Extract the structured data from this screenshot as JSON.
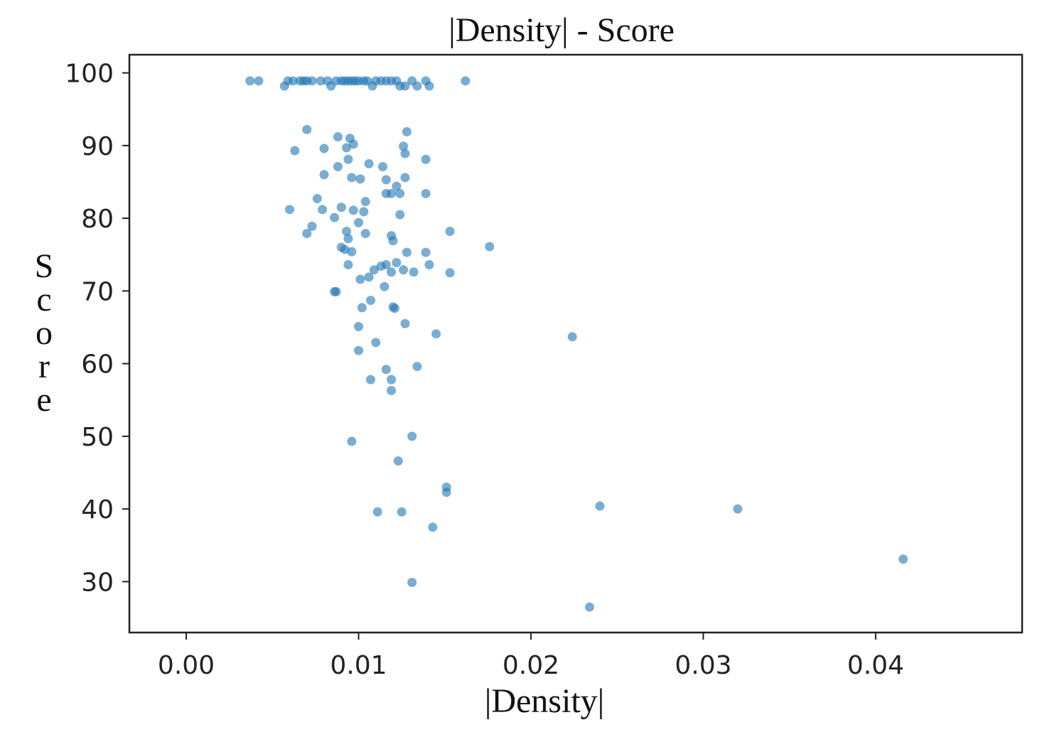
{
  "chart_data": {
    "type": "scatter",
    "title": "|Density| - Score",
    "xlabel": "|Density|",
    "ylabel": "Score",
    "xlim": [
      -0.0033,
      0.0485
    ],
    "ylim": [
      23.0,
      102.5
    ],
    "xticks": [
      0.0,
      0.01,
      0.02,
      0.03,
      0.04
    ],
    "xtick_labels": [
      "0.00",
      "0.01",
      "0.02",
      "0.03",
      "0.04"
    ],
    "yticks": [
      30,
      40,
      50,
      60,
      70,
      80,
      90,
      100
    ],
    "ytick_labels": [
      "30",
      "40",
      "50",
      "60",
      "70",
      "80",
      "90",
      "100"
    ],
    "grid": false,
    "color": "#1f77b4",
    "series": [
      {
        "points": [
          [
            0.0037,
            98.9
          ],
          [
            0.0042,
            98.9
          ],
          [
            0.0057,
            98.2
          ],
          [
            0.0059,
            98.9
          ],
          [
            0.0062,
            98.9
          ],
          [
            0.0066,
            98.9
          ],
          [
            0.0068,
            98.9
          ],
          [
            0.007,
            98.9
          ],
          [
            0.0073,
            98.9
          ],
          [
            0.0078,
            98.9
          ],
          [
            0.0082,
            98.9
          ],
          [
            0.0084,
            98.2
          ],
          [
            0.0087,
            98.9
          ],
          [
            0.009,
            98.9
          ],
          [
            0.0092,
            98.9
          ],
          [
            0.0094,
            98.9
          ],
          [
            0.0096,
            98.9
          ],
          [
            0.0098,
            98.9
          ],
          [
            0.01,
            98.9
          ],
          [
            0.0103,
            98.9
          ],
          [
            0.0105,
            98.9
          ],
          [
            0.0108,
            98.2
          ],
          [
            0.011,
            98.9
          ],
          [
            0.0113,
            98.9
          ],
          [
            0.0116,
            98.9
          ],
          [
            0.0119,
            98.9
          ],
          [
            0.0122,
            98.9
          ],
          [
            0.0124,
            98.2
          ],
          [
            0.0127,
            98.2
          ],
          [
            0.0131,
            98.9
          ],
          [
            0.0134,
            98.2
          ],
          [
            0.0139,
            98.9
          ],
          [
            0.0141,
            98.2
          ],
          [
            0.0162,
            98.9
          ],
          [
            0.007,
            92.2
          ],
          [
            0.0088,
            91.2
          ],
          [
            0.0095,
            91.0
          ],
          [
            0.0128,
            91.9
          ],
          [
            0.0063,
            89.3
          ],
          [
            0.008,
            89.6
          ],
          [
            0.0093,
            89.7
          ],
          [
            0.0097,
            90.2
          ],
          [
            0.0126,
            89.9
          ],
          [
            0.0127,
            88.9
          ],
          [
            0.0139,
            88.1
          ],
          [
            0.0094,
            88.1
          ],
          [
            0.0088,
            87.1
          ],
          [
            0.0106,
            87.5
          ],
          [
            0.0114,
            87.1
          ],
          [
            0.008,
            86.0
          ],
          [
            0.0096,
            85.6
          ],
          [
            0.0101,
            85.4
          ],
          [
            0.0116,
            85.3
          ],
          [
            0.0127,
            85.6
          ],
          [
            0.0122,
            84.4
          ],
          [
            0.0116,
            83.4
          ],
          [
            0.0119,
            83.4
          ],
          [
            0.0124,
            83.4
          ],
          [
            0.0139,
            83.4
          ],
          [
            0.0076,
            82.7
          ],
          [
            0.009,
            81.5
          ],
          [
            0.0104,
            82.3
          ],
          [
            0.0079,
            81.2
          ],
          [
            0.006,
            81.2
          ],
          [
            0.0097,
            81.1
          ],
          [
            0.0103,
            80.9
          ],
          [
            0.0086,
            80.1
          ],
          [
            0.01,
            79.4
          ],
          [
            0.0124,
            80.5
          ],
          [
            0.0073,
            78.9
          ],
          [
            0.007,
            77.9
          ],
          [
            0.0093,
            78.2
          ],
          [
            0.0104,
            77.9
          ],
          [
            0.0094,
            77.2
          ],
          [
            0.0119,
            77.6
          ],
          [
            0.012,
            76.9
          ],
          [
            0.0153,
            78.2
          ],
          [
            0.009,
            76.0
          ],
          [
            0.0092,
            75.7
          ],
          [
            0.0096,
            75.4
          ],
          [
            0.0128,
            75.3
          ],
          [
            0.0139,
            75.3
          ],
          [
            0.0176,
            76.1
          ],
          [
            0.0094,
            73.6
          ],
          [
            0.0113,
            73.4
          ],
          [
            0.0116,
            73.6
          ],
          [
            0.0122,
            73.9
          ],
          [
            0.0141,
            73.6
          ],
          [
            0.0109,
            72.9
          ],
          [
            0.0119,
            72.6
          ],
          [
            0.0126,
            72.9
          ],
          [
            0.0132,
            72.6
          ],
          [
            0.0153,
            72.5
          ],
          [
            0.0101,
            71.6
          ],
          [
            0.0106,
            71.9
          ],
          [
            0.0115,
            70.6
          ],
          [
            0.0086,
            69.9
          ],
          [
            0.0087,
            69.9
          ],
          [
            0.0107,
            68.7
          ],
          [
            0.0102,
            67.7
          ],
          [
            0.012,
            67.8
          ],
          [
            0.0121,
            67.6
          ],
          [
            0.0127,
            65.5
          ],
          [
            0.01,
            65.1
          ],
          [
            0.0145,
            64.1
          ],
          [
            0.0224,
            63.7
          ],
          [
            0.011,
            62.9
          ],
          [
            0.01,
            61.8
          ],
          [
            0.0116,
            59.2
          ],
          [
            0.0134,
            59.6
          ],
          [
            0.0107,
            57.8
          ],
          [
            0.0119,
            57.8
          ],
          [
            0.0119,
            56.3
          ],
          [
            0.0096,
            49.3
          ],
          [
            0.0131,
            50.0
          ],
          [
            0.0123,
            46.6
          ],
          [
            0.0151,
            43.0
          ],
          [
            0.0151,
            42.3
          ],
          [
            0.024,
            40.4
          ],
          [
            0.032,
            40.0
          ],
          [
            0.0111,
            39.6
          ],
          [
            0.0125,
            39.6
          ],
          [
            0.0143,
            37.5
          ],
          [
            0.0416,
            33.1
          ],
          [
            0.0131,
            29.9
          ],
          [
            0.0234,
            26.5
          ]
        ]
      }
    ]
  }
}
